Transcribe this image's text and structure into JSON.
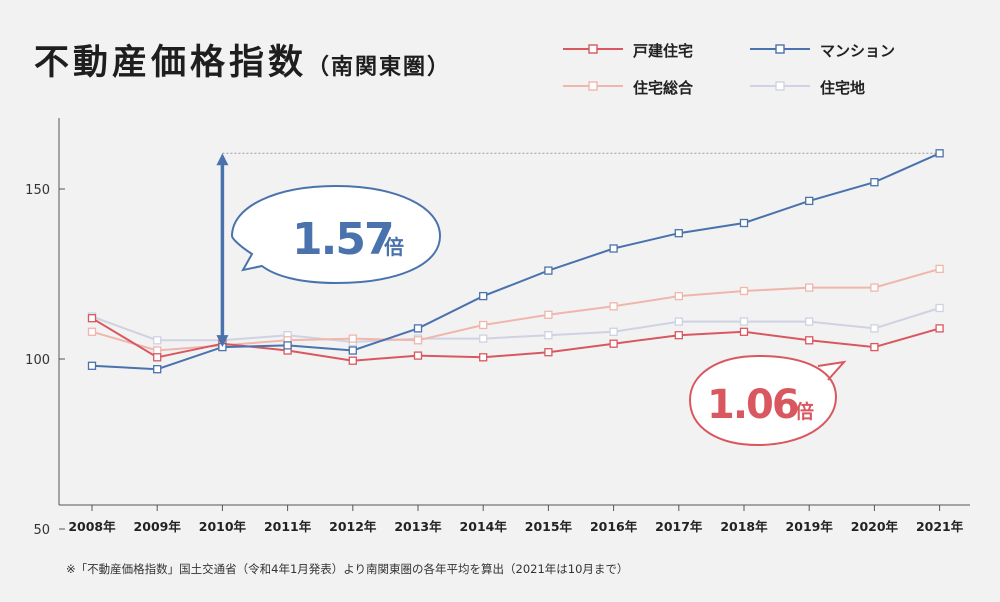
{
  "title": "不動産価格指数",
  "subtitle": "（南関東圏）",
  "note": "※「不動産価格指数」国土交通省（令和4年1月発表）より南関東圏の各年平均を算出（2021年は10月まで）",
  "colors": {
    "kodate": "#d9585f",
    "mansion": "#4a72ad",
    "sogo": "#f0b6ac",
    "takuchi": "#cfd2e2",
    "background": "#f2f2f2",
    "axis": "#555555"
  },
  "callouts": {
    "mansion": {
      "value": "1.57",
      "unit": "倍"
    },
    "kodate": {
      "value": "1.06",
      "unit": "倍"
    }
  },
  "chart_data": {
    "type": "line",
    "categories": [
      "2008年",
      "2009年",
      "2010年",
      "2011年",
      "2012年",
      "2013年",
      "2014年",
      "2015年",
      "2016年",
      "2017年",
      "2018年",
      "2019年",
      "2020年",
      "2021年"
    ],
    "y_ticks": [
      150,
      100,
      50
    ],
    "ylim": [
      50,
      170
    ],
    "grid": false,
    "legend_position": "top-right",
    "series": [
      {
        "name": "戸建住宅",
        "color_key": "kodate",
        "values": [
          112.0,
          100.5,
          104.5,
          102.5,
          99.5,
          101.0,
          100.5,
          102.0,
          104.5,
          107.0,
          108.0,
          105.5,
          103.5,
          109.0
        ]
      },
      {
        "name": "マンション",
        "color_key": "mansion",
        "values": [
          98.0,
          97.0,
          103.5,
          104.0,
          102.5,
          109.0,
          118.5,
          126.0,
          132.5,
          137.0,
          140.0,
          146.5,
          152.0,
          160.5
        ]
      },
      {
        "name": "住宅総合",
        "color_key": "sogo",
        "values": [
          108.0,
          102.5,
          104.0,
          105.5,
          106.0,
          105.5,
          110.0,
          113.0,
          115.5,
          118.5,
          120.0,
          121.0,
          121.0,
          126.5
        ]
      },
      {
        "name": "住宅地",
        "color_key": "takuchi",
        "values": [
          112.5,
          105.5,
          105.5,
          107.0,
          105.0,
          106.0,
          106.0,
          107.0,
          108.0,
          111.0,
          111.0,
          111.0,
          109.0,
          115.0
        ]
      }
    ]
  }
}
